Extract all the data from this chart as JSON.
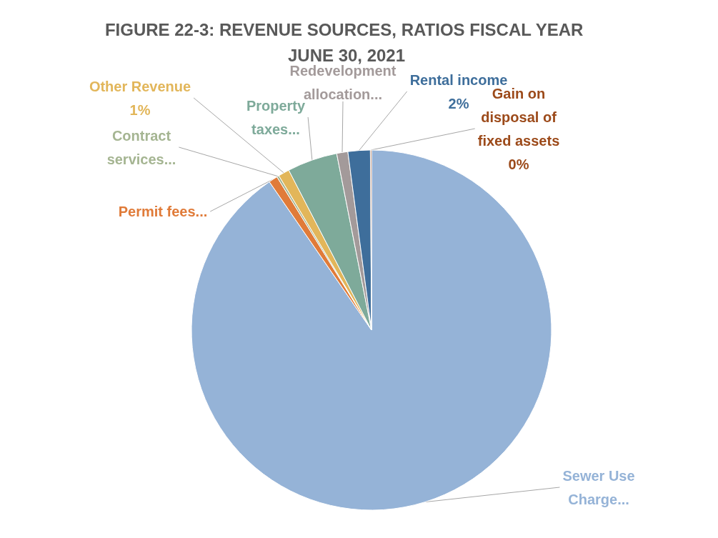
{
  "chart_data": {
    "type": "pie",
    "title": "FIGURE 22-3: REVENUE SOURCES, RATIOS FISCAL YEAR JUNE 30, 2021",
    "categories": [
      "Sewer Use Charge...",
      "Permit fees...",
      "Contract services...",
      "Other Revenue",
      "Property taxes...",
      "Redevelopment allocation...",
      "Rental income",
      "Gain on disposal of fixed assets"
    ],
    "values": [
      90.4,
      0.8,
      0.2,
      1,
      4.5,
      1,
      2,
      0.1
    ],
    "value_labels": [
      null,
      null,
      null,
      "1%",
      null,
      null,
      "2%",
      "0%"
    ],
    "colors": [
      "#95b3d7",
      "#e07b39",
      "#a5b592",
      "#e2b65a",
      "#7eaa9a",
      "#a39a9a",
      "#3e6e9b",
      "#9c4a1a"
    ],
    "legend": false
  }
}
